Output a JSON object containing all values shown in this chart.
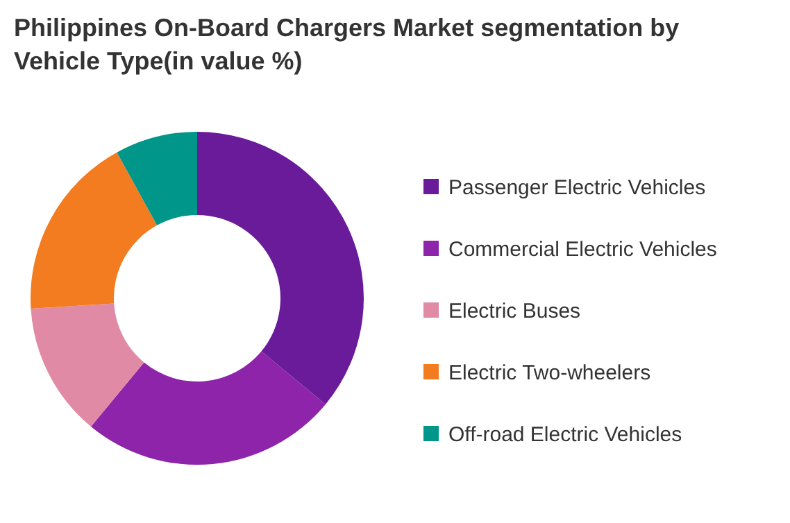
{
  "chart_data": {
    "type": "donut",
    "title": "Philippines On-Board Chargers Market segmentation by Vehicle Type(in value %)",
    "categories": [
      "Passenger Electric Vehicles",
      "Commercial Electric Vehicles",
      "Electric Buses",
      "Electric Two-wheelers",
      "Off-road Electric Vehicles"
    ],
    "values": [
      36,
      25,
      13,
      18,
      8
    ],
    "colors": [
      "#6a1b9a",
      "#8e24aa",
      "#e08aa5",
      "#f47c20",
      "#00968a"
    ],
    "legend": "right"
  }
}
